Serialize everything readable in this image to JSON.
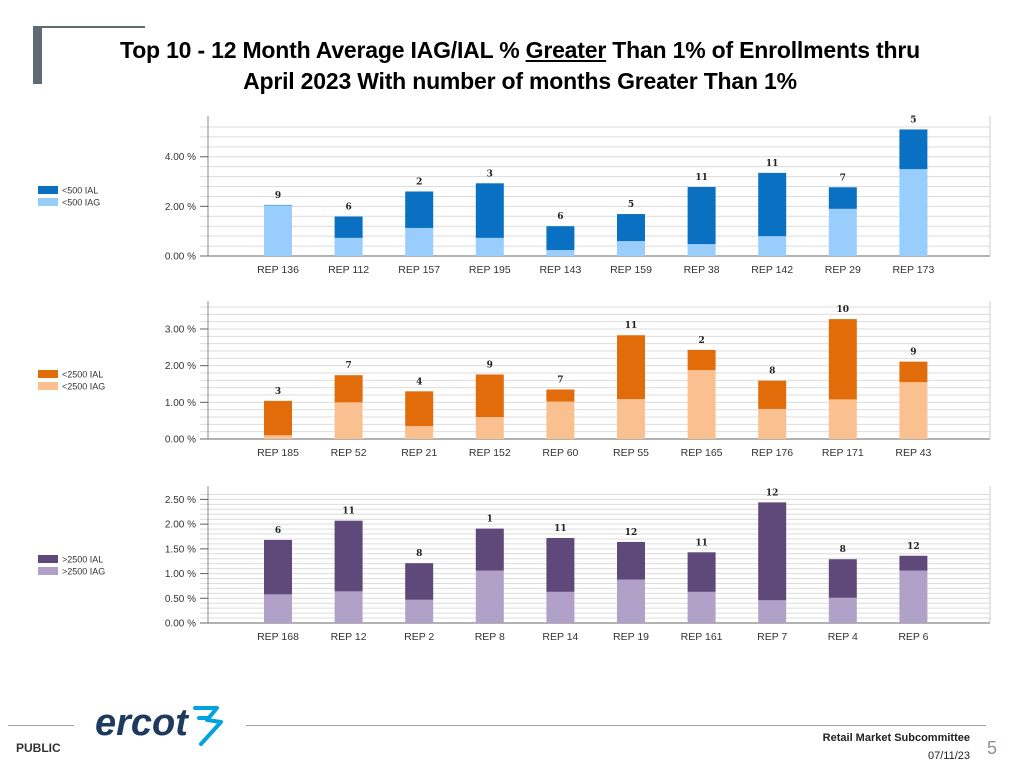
{
  "slide": {
    "title_part1": "Top 10 - 12 Month Average IAG/IAL % ",
    "title_underlined": "Greater",
    "title_part2": " Than 1% of Enrollments thru",
    "title_line2": "April 2023 With number of months Greater Than 1%"
  },
  "footer": {
    "public_label": "PUBLIC",
    "logo_text": "ercot",
    "committee": "Retail Market Subcommittee",
    "date": "07/11/23",
    "page_number": "5"
  },
  "colors": {
    "small_ial": "#0a70c2",
    "small_iag": "#99cdfc",
    "mid_ial": "#e36c0a",
    "mid_iag": "#fac08f",
    "large_ial": "#5f497a",
    "large_iag": "#b1a0c7",
    "logo": "#1f3a5f"
  },
  "chart_data": [
    {
      "type": "bar",
      "stacked": true,
      "name": "small",
      "categories": [
        "REP 136",
        "REP 112",
        "REP 157",
        "REP 195",
        "REP 143",
        "REP 159",
        "REP 38",
        "REP 142",
        "REP 29",
        "REP 173"
      ],
      "series": [
        {
          "name": "<500 IAL",
          "values": [
            0.02,
            0.86,
            1.47,
            2.2,
            0.96,
            1.09,
            2.3,
            2.55,
            0.87,
            1.6
          ]
        },
        {
          "name": "<500 IAG",
          "values": [
            2.04,
            0.73,
            1.13,
            0.73,
            0.24,
            0.6,
            0.48,
            0.8,
            1.9,
            3.5
          ]
        }
      ],
      "months": [
        "9",
        "6",
        "2",
        "3",
        "6",
        "5",
        "11",
        "11",
        "7",
        "5"
      ],
      "yticks": [
        0,
        2,
        4
      ],
      "ytick_labels": [
        "0.00 %",
        "2.00 %",
        "4.00 %"
      ],
      "ylim": [
        0,
        5.4
      ],
      "legend": [
        "<500 IAL",
        "<500 IAG"
      ]
    },
    {
      "type": "bar",
      "stacked": true,
      "name": "mid",
      "categories": [
        "REP 185",
        "REP 52",
        "REP 21",
        "REP 152",
        "REP 60",
        "REP 55",
        "REP 165",
        "REP 176",
        "REP 171",
        "REP 43"
      ],
      "series": [
        {
          "name": "<2500 IAL",
          "values": [
            0.94,
            0.74,
            0.95,
            1.16,
            0.33,
            1.74,
            0.55,
            0.77,
            2.19,
            0.56
          ]
        },
        {
          "name": "<2500 IAG",
          "values": [
            0.1,
            1.0,
            0.35,
            0.6,
            1.02,
            1.09,
            1.88,
            0.82,
            1.08,
            1.55
          ]
        }
      ],
      "months": [
        "3",
        "7",
        "4",
        "9",
        "7",
        "11",
        "2",
        "8",
        "10",
        "9"
      ],
      "yticks": [
        0,
        1,
        2,
        3
      ],
      "ytick_labels": [
        "0.00 %",
        "1.00 %",
        "2.00 %",
        "3.00 %"
      ],
      "ylim": [
        0,
        3.6
      ],
      "legend": [
        "<2500 IAL",
        "<2500 IAG"
      ]
    },
    {
      "type": "bar",
      "stacked": true,
      "name": "large",
      "categories": [
        "REP 168",
        "REP 12",
        "REP 2",
        "REP 8",
        "REP 14",
        "REP 19",
        "REP 161",
        "REP 7",
        "REP 4",
        "REP 6"
      ],
      "series": [
        {
          "name": ">2500 IAL",
          "values": [
            1.1,
            1.43,
            0.74,
            0.85,
            1.09,
            0.76,
            0.8,
            1.98,
            0.78,
            0.3
          ]
        },
        {
          "name": ">2500 IAG",
          "values": [
            0.58,
            0.64,
            0.47,
            1.06,
            0.63,
            0.88,
            0.63,
            0.46,
            0.51,
            1.06
          ]
        }
      ],
      "months": [
        "6",
        "11",
        "8",
        "1",
        "11",
        "12",
        "11",
        "12",
        "8",
        "12"
      ],
      "yticks": [
        0,
        0.5,
        1,
        1.5,
        2,
        2.5
      ],
      "ytick_labels": [
        "0.00 %",
        "0.50 %",
        "1.00 %",
        "1.50 %",
        "2.00 %",
        "2.50 %"
      ],
      "ylim": [
        0,
        2.65
      ],
      "legend": [
        ">2500 IAL",
        ">2500 IAG"
      ]
    }
  ]
}
